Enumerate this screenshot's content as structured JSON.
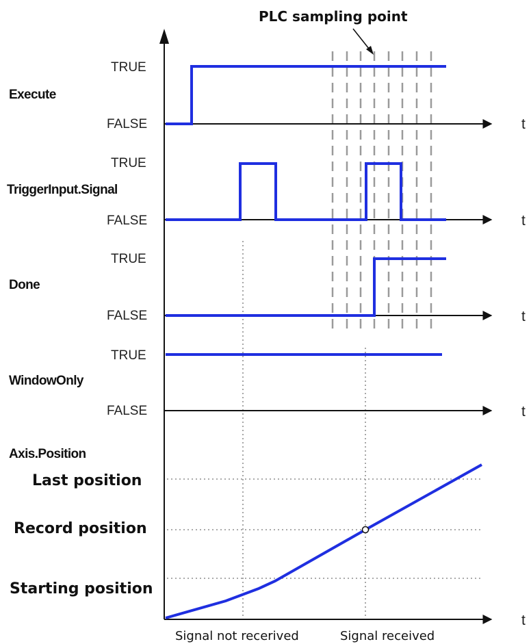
{
  "diagram": {
    "title_annotation": "PLC sampling point",
    "time_label": "t",
    "state_true": "TRUE",
    "state_false": "FALSE",
    "signals": [
      {
        "id": "execute",
        "name": "Execute"
      },
      {
        "id": "trigger",
        "name": "TriggerInput.Signal"
      },
      {
        "id": "done",
        "name": "Done"
      },
      {
        "id": "window",
        "name": "WindowOnly"
      }
    ],
    "position_graph": {
      "name": "Axis.Position",
      "levels": [
        "Last position",
        "Record position",
        "Starting position"
      ]
    },
    "bottom_labels": [
      "Signal not recerived",
      "Signal received"
    ],
    "colors": {
      "signal": "#1f2fe0",
      "axis": "#111111",
      "guides": "#9a9a9a"
    }
  }
}
